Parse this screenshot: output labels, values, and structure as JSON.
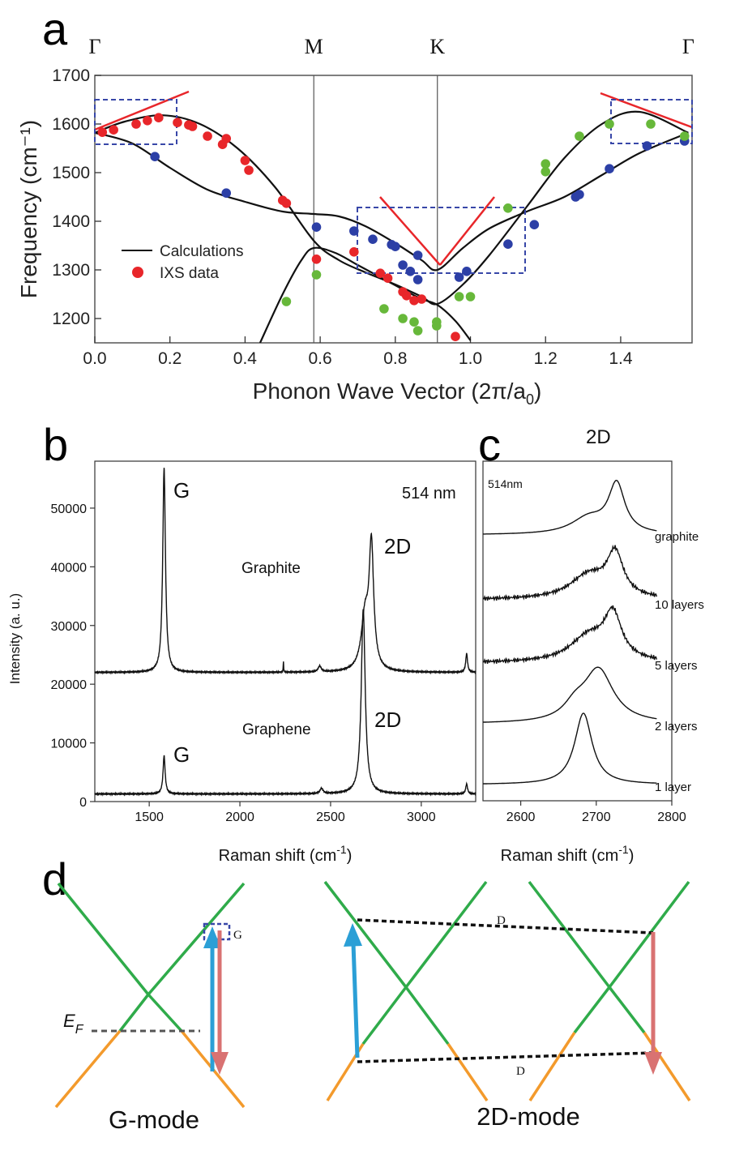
{
  "panel_a": {
    "letter": "a",
    "legend": {
      "calc": "Calculations",
      "ixs": "IXS data"
    },
    "chart_data": {
      "type": "scatter",
      "title": "",
      "xlabel_pre": "Phonon Wave Vector (2π/a",
      "xlabel_sub": "0",
      "xlabel_post": ")",
      "ylabel": "Frequency (cm⁻¹)",
      "xlim": [
        0,
        1.59
      ],
      "ylim": [
        1150,
        1700
      ],
      "x_ticks": [
        "0.0",
        "0.2",
        "0.4",
        "0.6",
        "0.8",
        "1.0",
        "1.2",
        "1.4"
      ],
      "x_tick_values": [
        0,
        0.2,
        0.4,
        0.6,
        0.8,
        1.0,
        1.2,
        1.4
      ],
      "y_ticks": [
        "1200",
        "1300",
        "1400",
        "1500",
        "1600",
        "1700"
      ],
      "y_tick_values": [
        1200,
        1300,
        1400,
        1500,
        1600,
        1700
      ],
      "symmetry_points": [
        {
          "label": "Γ",
          "x": 0.0
        },
        {
          "label": "M",
          "x": 0.583
        },
        {
          "label": "K",
          "x": 0.912
        },
        {
          "label": "Γ",
          "x": 1.58
        }
      ],
      "curves": [
        {
          "name": "Calculations",
          "x": [
            0,
            0.08,
            0.18,
            0.28,
            0.38,
            0.48,
            0.583,
            0.65,
            0.72,
            0.8,
            0.87,
            0.912,
            0.98,
            1.05,
            1.15,
            1.25,
            1.35,
            1.45,
            1.58
          ],
          "y": [
            1582,
            1605,
            1618,
            1600,
            1550,
            1470,
            1360,
            1320,
            1295,
            1270,
            1245,
            1230,
            1270,
            1330,
            1430,
            1530,
            1600,
            1625,
            1582
          ]
        },
        {
          "name": "Calculations",
          "x": [
            0,
            0.1,
            0.2,
            0.3,
            0.4,
            0.5,
            0.583,
            0.65,
            0.72,
            0.8,
            0.87,
            0.912,
            0.98,
            1.05,
            1.15,
            1.25,
            1.35,
            1.45,
            1.58
          ],
          "y": [
            1582,
            1560,
            1510,
            1465,
            1440,
            1420,
            1415,
            1410,
            1390,
            1355,
            1320,
            1300,
            1345,
            1385,
            1420,
            1450,
            1495,
            1540,
            1582
          ]
        },
        {
          "name": "Calculations",
          "x": [
            0.44,
            0.5,
            0.55,
            0.583,
            0.64,
            0.7,
            0.76,
            0.82,
            0.87,
            0.912,
            0.96,
            1.0
          ],
          "y": [
            1150,
            1250,
            1320,
            1345,
            1335,
            1310,
            1285,
            1260,
            1240,
            1228,
            1195,
            1155
          ]
        }
      ],
      "series": [
        {
          "name": "IXS red",
          "color": "#e8262a",
          "x": [
            0.02,
            0.05,
            0.11,
            0.14,
            0.17,
            0.22,
            0.25,
            0.26,
            0.3,
            0.34,
            0.35,
            0.4,
            0.41,
            0.5,
            0.51,
            0.59,
            0.69,
            0.76,
            0.78,
            0.82,
            0.83,
            0.85,
            0.87,
            0.96
          ],
          "y": [
            1583,
            1588,
            1600,
            1607,
            1613,
            1603,
            1598,
            1595,
            1575,
            1558,
            1570,
            1525,
            1505,
            1443,
            1437,
            1322,
            1337,
            1293,
            1283,
            1255,
            1247,
            1237,
            1240,
            1163
          ]
        },
        {
          "name": "IXS blue",
          "color": "#2c3fa6",
          "x": [
            0.16,
            0.35,
            0.59,
            0.69,
            0.74,
            0.79,
            0.8,
            0.82,
            0.84,
            0.86,
            0.86,
            0.97,
            0.99,
            1.1,
            1.17,
            1.28,
            1.29,
            1.37,
            1.47,
            1.57
          ],
          "y": [
            1533,
            1458,
            1388,
            1380,
            1363,
            1352,
            1348,
            1310,
            1297,
            1330,
            1280,
            1285,
            1297,
            1353,
            1393,
            1450,
            1455,
            1508,
            1555,
            1565
          ]
        },
        {
          "name": "IXS green",
          "color": "#67b83a",
          "x": [
            0.51,
            0.59,
            0.77,
            0.82,
            0.85,
            0.86,
            0.91,
            0.91,
            0.97,
            1.0,
            1.1,
            1.2,
            1.2,
            1.29,
            1.37,
            1.48,
            1.57
          ],
          "y": [
            1235,
            1290,
            1220,
            1200,
            1193,
            1175,
            1193,
            1185,
            1245,
            1245,
            1427,
            1518,
            1502,
            1575,
            1600,
            1600,
            1575
          ]
        }
      ]
    }
  },
  "panel_b": {
    "letter": "b",
    "chart_data": {
      "type": "line",
      "title": "",
      "xlabel": "Raman shift (cm",
      "xlabel_sup": "-1",
      "xlabel_post": ")",
      "ylabel": "Intensity (a. u.)",
      "xlim": [
        1200,
        3300
      ],
      "ylim": [
        0,
        58000
      ],
      "x_ticks": [
        "1500",
        "2000",
        "2500",
        "3000"
      ],
      "x_tick_values": [
        1500,
        2000,
        2500,
        3000
      ],
      "y_ticks": [
        "0",
        "10000",
        "20000",
        "30000",
        "40000",
        "50000"
      ],
      "y_tick_values": [
        0,
        10000,
        20000,
        30000,
        40000,
        50000
      ],
      "series": [
        {
          "name": "Graphite",
          "baseline": 22000,
          "peaks": [
            {
              "center": 1582,
              "height": 34800,
              "width": 9
            },
            {
              "center": 2240,
              "height": 1800,
              "width": 1.5
            },
            {
              "center": 2440,
              "height": 1000,
              "width": 10
            },
            {
              "center": 2690,
              "height": 9000,
              "width": 25
            },
            {
              "center": 2725,
              "height": 20500,
              "width": 15
            },
            {
              "center": 3250,
              "height": 3200,
              "width": 6
            }
          ]
        },
        {
          "name": "Graphene",
          "baseline": 1300,
          "peaks": [
            {
              "center": 1582,
              "height": 6500,
              "width": 7
            },
            {
              "center": 2450,
              "height": 900,
              "width": 10
            },
            {
              "center": 2680,
              "height": 31500,
              "width": 13
            },
            {
              "center": 3250,
              "height": 1700,
              "width": 6
            }
          ]
        }
      ],
      "annotations": {
        "laser": "514 nm",
        "graphite": "Graphite",
        "graphene": "Graphene",
        "g_top": "G",
        "d2_top": "2D",
        "g_bottom": "G",
        "d2_bottom": "2D"
      }
    }
  },
  "panel_c": {
    "letter": "c",
    "title": "2D",
    "laser": "514nm",
    "xlabel": "Raman shift (cm",
    "xlabel_sup": "-1",
    "xlabel_post": ")",
    "chart_data": {
      "type": "line",
      "xlim": [
        2550,
        2800
      ],
      "x_ticks": [
        "2600",
        "2700",
        "2800"
      ],
      "x_tick_values": [
        2600,
        2700,
        2800
      ],
      "series": [
        {
          "name": "graphite",
          "peaks": [
            {
              "center": 2690,
              "height": 0.25,
              "width": 28
            },
            {
              "center": 2727,
              "height": 0.75,
              "width": 13
            }
          ]
        },
        {
          "name": "10 layers",
          "peaks": [
            {
              "center": 2690,
              "height": 0.35,
              "width": 30
            },
            {
              "center": 2725,
              "height": 0.62,
              "width": 13
            }
          ]
        },
        {
          "name": "5 layers",
          "peaks": [
            {
              "center": 2690,
              "height": 0.35,
              "width": 30
            },
            {
              "center": 2722,
              "height": 0.6,
              "width": 14
            }
          ]
        },
        {
          "name": "2 layers",
          "peaks": [
            {
              "center": 2672,
              "height": 0.2,
              "width": 18
            },
            {
              "center": 2703,
              "height": 0.8,
              "width": 24
            }
          ]
        },
        {
          "name": "1 layer",
          "peaks": [
            {
              "center": 2683,
              "height": 1.0,
              "width": 14
            }
          ]
        }
      ]
    }
  },
  "panel_d": {
    "letter": "d",
    "g_mode": "G-mode",
    "d2_mode": "2D-mode",
    "ef_main": "E",
    "ef_sub": "F",
    "g_label": "G",
    "d_top": "D",
    "d_bottom": "D",
    "colors": {
      "band_upper": "#2fab4a",
      "band_lower": "#f39a2c",
      "arrow_up": "#2b9fd6",
      "arrow_down": "#d97272",
      "dash": "#111111",
      "box": "#3847a8"
    }
  }
}
